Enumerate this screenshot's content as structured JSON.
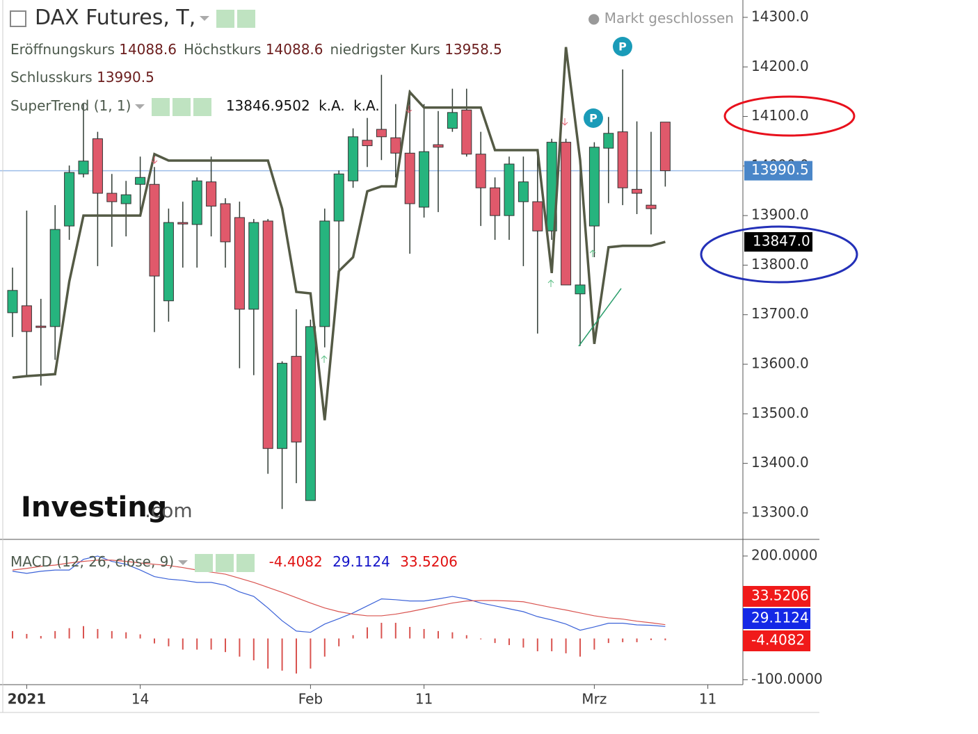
{
  "header": {
    "status": "Markt geschlossen",
    "open_label": "Eröffnungskurs",
    "high_label": "Höchstkurs",
    "low_label": "niedrigster Kurs",
    "close_label": "Schlusskurs",
    "logo": "Investing",
    "logo_suffix": ".com"
  },
  "chart_data": [
    {
      "type": "candlestick",
      "title": "DAX Futures, T,",
      "up_color": "#26b47e",
      "down_color": "#e0596b",
      "open": [
        13704,
        13718,
        13677,
        13676,
        13879,
        13984,
        14055,
        13945,
        13924,
        13963,
        13963,
        13728,
        13886,
        13882,
        13968,
        13924,
        13896,
        13711,
        13889,
        13430,
        13616,
        13325,
        13676,
        13889,
        13970,
        14052,
        14074,
        14057,
        14026,
        13917,
        14043,
        14076,
        14113,
        14024,
        13956,
        13900,
        13928,
        13928,
        13869,
        14048,
        13742,
        13879,
        14036,
        14069,
        13953,
        13921,
        14088.6
      ],
      "high": [
        13795,
        13910,
        13732,
        13921,
        14001,
        14125,
        14069,
        13984,
        13970,
        14019,
        13998,
        13914,
        13928,
        13977,
        14019,
        13935,
        13928,
        13893,
        13893,
        13606,
        13711,
        13690,
        13914,
        13991,
        14076,
        14097,
        14184,
        14125,
        14153,
        14125,
        14111,
        14156,
        14156,
        14069,
        13977,
        14019,
        14019,
        14033,
        14055,
        14055,
        14012,
        14048,
        14099,
        14195,
        14090,
        14069,
        14088.6
      ],
      "low": [
        13655,
        13578,
        13557,
        13609,
        13851,
        13977,
        13798,
        13837,
        13858,
        13900,
        13665,
        13686,
        13795,
        13795,
        13858,
        13795,
        13592,
        13578,
        13379,
        13308,
        13360,
        13325,
        13634,
        13788,
        13956,
        13998,
        14012,
        13977,
        13823,
        13896,
        13907,
        14069,
        14019,
        13879,
        13851,
        13851,
        13798,
        13662,
        13851,
        13760,
        13637,
        13816,
        13925,
        13921,
        13903,
        13862,
        13958.5
      ],
      "close": [
        13749,
        13666,
        13676,
        13872,
        13987,
        14010,
        13945,
        13928,
        13942,
        13977,
        13778,
        13886,
        13883,
        13970,
        13919,
        13847,
        13711,
        13886,
        13430,
        13602,
        13443,
        13676,
        13889,
        13984,
        14059,
        14041,
        14059,
        14026,
        13924,
        14029,
        14038,
        14108,
        14024,
        13956,
        13900,
        14004,
        13968,
        13869,
        14048,
        13760,
        13760,
        14038,
        14066,
        13956,
        13945,
        13914,
        13990.5
      ],
      "series": [
        {
          "name": "SuperTrend (1, 1)",
          "color": "#545a45",
          "values": [
            13573,
            13576,
            13578,
            13580,
            13767,
            13900,
            13900,
            13900,
            13900,
            13900,
            14024,
            14011,
            14011,
            14011,
            14011,
            14011,
            14011,
            14011,
            14011,
            13914,
            13746,
            13743,
            13487,
            13788,
            13816,
            13949,
            13959,
            13959,
            14149,
            14118,
            14118,
            14118,
            14118,
            14118,
            14032,
            14032,
            14032,
            14032,
            13784,
            14240,
            14012,
            13641,
            13836,
            13839,
            13839,
            13839,
            13846.9502
          ],
          "na_labels": [
            "k.A.",
            "k.A."
          ],
          "last_label": "13847.0"
        }
      ],
      "pivot_labels": [
        "P",
        "P"
      ],
      "ylim": [
        13248,
        14335
      ],
      "yticks": [
        {
          "value": 13300,
          "label": "13300.0"
        },
        {
          "value": 13400,
          "label": "13400.0"
        },
        {
          "value": 13500,
          "label": "13500.0"
        },
        {
          "value": 13600,
          "label": "13600.0"
        },
        {
          "value": 13700,
          "label": "13700.0"
        },
        {
          "value": 13800,
          "label": "13800.0"
        },
        {
          "value": 13900,
          "label": "13900.0"
        },
        {
          "value": 14000,
          "label": "14000.0"
        },
        {
          "value": 14100,
          "label": "14100.0"
        },
        {
          "value": 14200,
          "label": "14200.0"
        },
        {
          "value": 14300,
          "label": "14300.0"
        }
      ]
    },
    {
      "type": "macd",
      "title": "MACD (12, 26, close, 9)",
      "series": [
        {
          "color": "#d9534f",
          "style": "bars",
          "values": [
            18,
            11,
            6,
            18,
            25,
            30,
            23,
            18,
            15,
            10,
            -12,
            -19,
            -27,
            -27,
            -27,
            -33,
            -44,
            -53,
            -73,
            -78,
            -85,
            -73,
            -44,
            -19,
            8,
            27,
            38,
            38,
            28,
            23,
            18,
            15,
            8,
            -2,
            -11,
            -16,
            -22,
            -31,
            -31,
            -36,
            -44,
            -27,
            -11,
            -9,
            -9,
            -4,
            -4.4082
          ]
        },
        {
          "color": "#3b62d8",
          "style": "line",
          "values": [
            163,
            158,
            163,
            166,
            166,
            192,
            200,
            187,
            180,
            166,
            150,
            144,
            141,
            136,
            136,
            129,
            113,
            102,
            74,
            43,
            18,
            15,
            35,
            48,
            62,
            79,
            96,
            94,
            91,
            91,
            96,
            102,
            96,
            86,
            79,
            72,
            65,
            53,
            45,
            35,
            20,
            28,
            37,
            37,
            33,
            32,
            29.1124
          ]
        },
        {
          "color": "#d9534f",
          "style": "line",
          "values": [
            166,
            170,
            175,
            178,
            183,
            187,
            190,
            190,
            187,
            183,
            180,
            177,
            172,
            166,
            161,
            156,
            146,
            136,
            124,
            112,
            99,
            86,
            74,
            65,
            59,
            55,
            55,
            59,
            65,
            72,
            79,
            86,
            91,
            92,
            92,
            91,
            89,
            82,
            75,
            69,
            62,
            55,
            50,
            47,
            42,
            38,
            33.5206
          ]
        }
      ],
      "ylim": [
        -112,
        237
      ],
      "yticks": [
        {
          "value": 200,
          "label": "200.0000"
        },
        {
          "value": -100,
          "label": "-100.0000"
        }
      ],
      "xticks": [
        {
          "value": 1,
          "label": "2021"
        },
        {
          "value": 9,
          "label": "14"
        },
        {
          "value": 21,
          "label": "Feb"
        },
        {
          "value": 29,
          "label": "11"
        },
        {
          "value": 41,
          "label": "Mrz"
        },
        {
          "value": 49,
          "label": "11"
        }
      ]
    }
  ]
}
